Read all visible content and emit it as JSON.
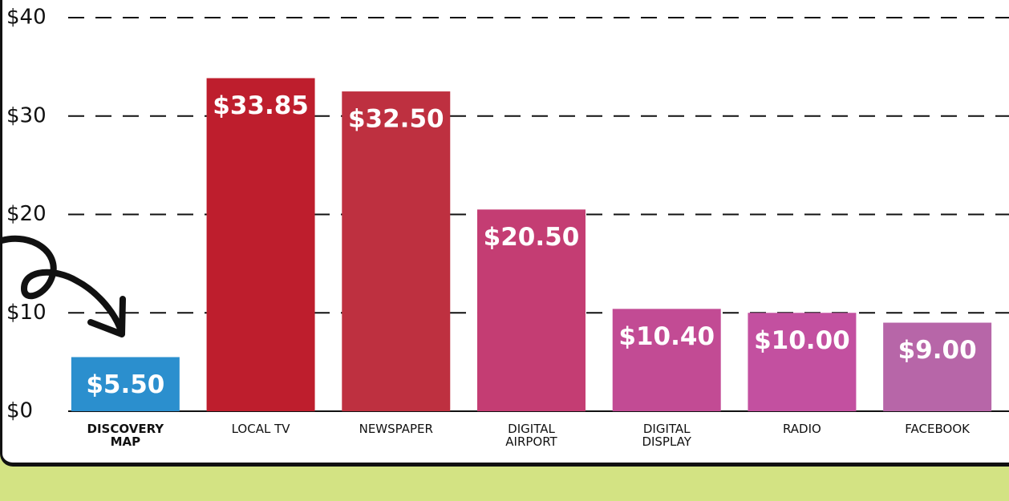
{
  "chart_data": {
    "type": "bar",
    "categories": [
      "DISCOVERY MAP",
      "LOCAL TV",
      "NEWSPAPER",
      "DIGITAL AIRPORT",
      "DIGITAL DISPLAY",
      "RADIO",
      "FACEBOOK"
    ],
    "values": [
      5.5,
      33.85,
      32.5,
      20.5,
      10.4,
      10.0,
      9.0
    ],
    "value_labels": [
      "$5.50",
      "$33.85",
      "$32.50",
      "$20.50",
      "$10.40",
      "$10.00",
      "$9.00"
    ],
    "colors": [
      "#2b8fce",
      "#be1e2d",
      "#be3040",
      "#c43d73",
      "#c24b94",
      "#c350a0",
      "#b766a8"
    ],
    "ylim": [
      0,
      40
    ],
    "yticks": [
      {
        "value": 0,
        "label": "$0"
      },
      {
        "value": 10,
        "label": "$10"
      },
      {
        "value": 20,
        "label": "$20"
      },
      {
        "value": 30,
        "label": "$30"
      },
      {
        "value": 40,
        "label": "$40"
      }
    ],
    "grid": true
  }
}
